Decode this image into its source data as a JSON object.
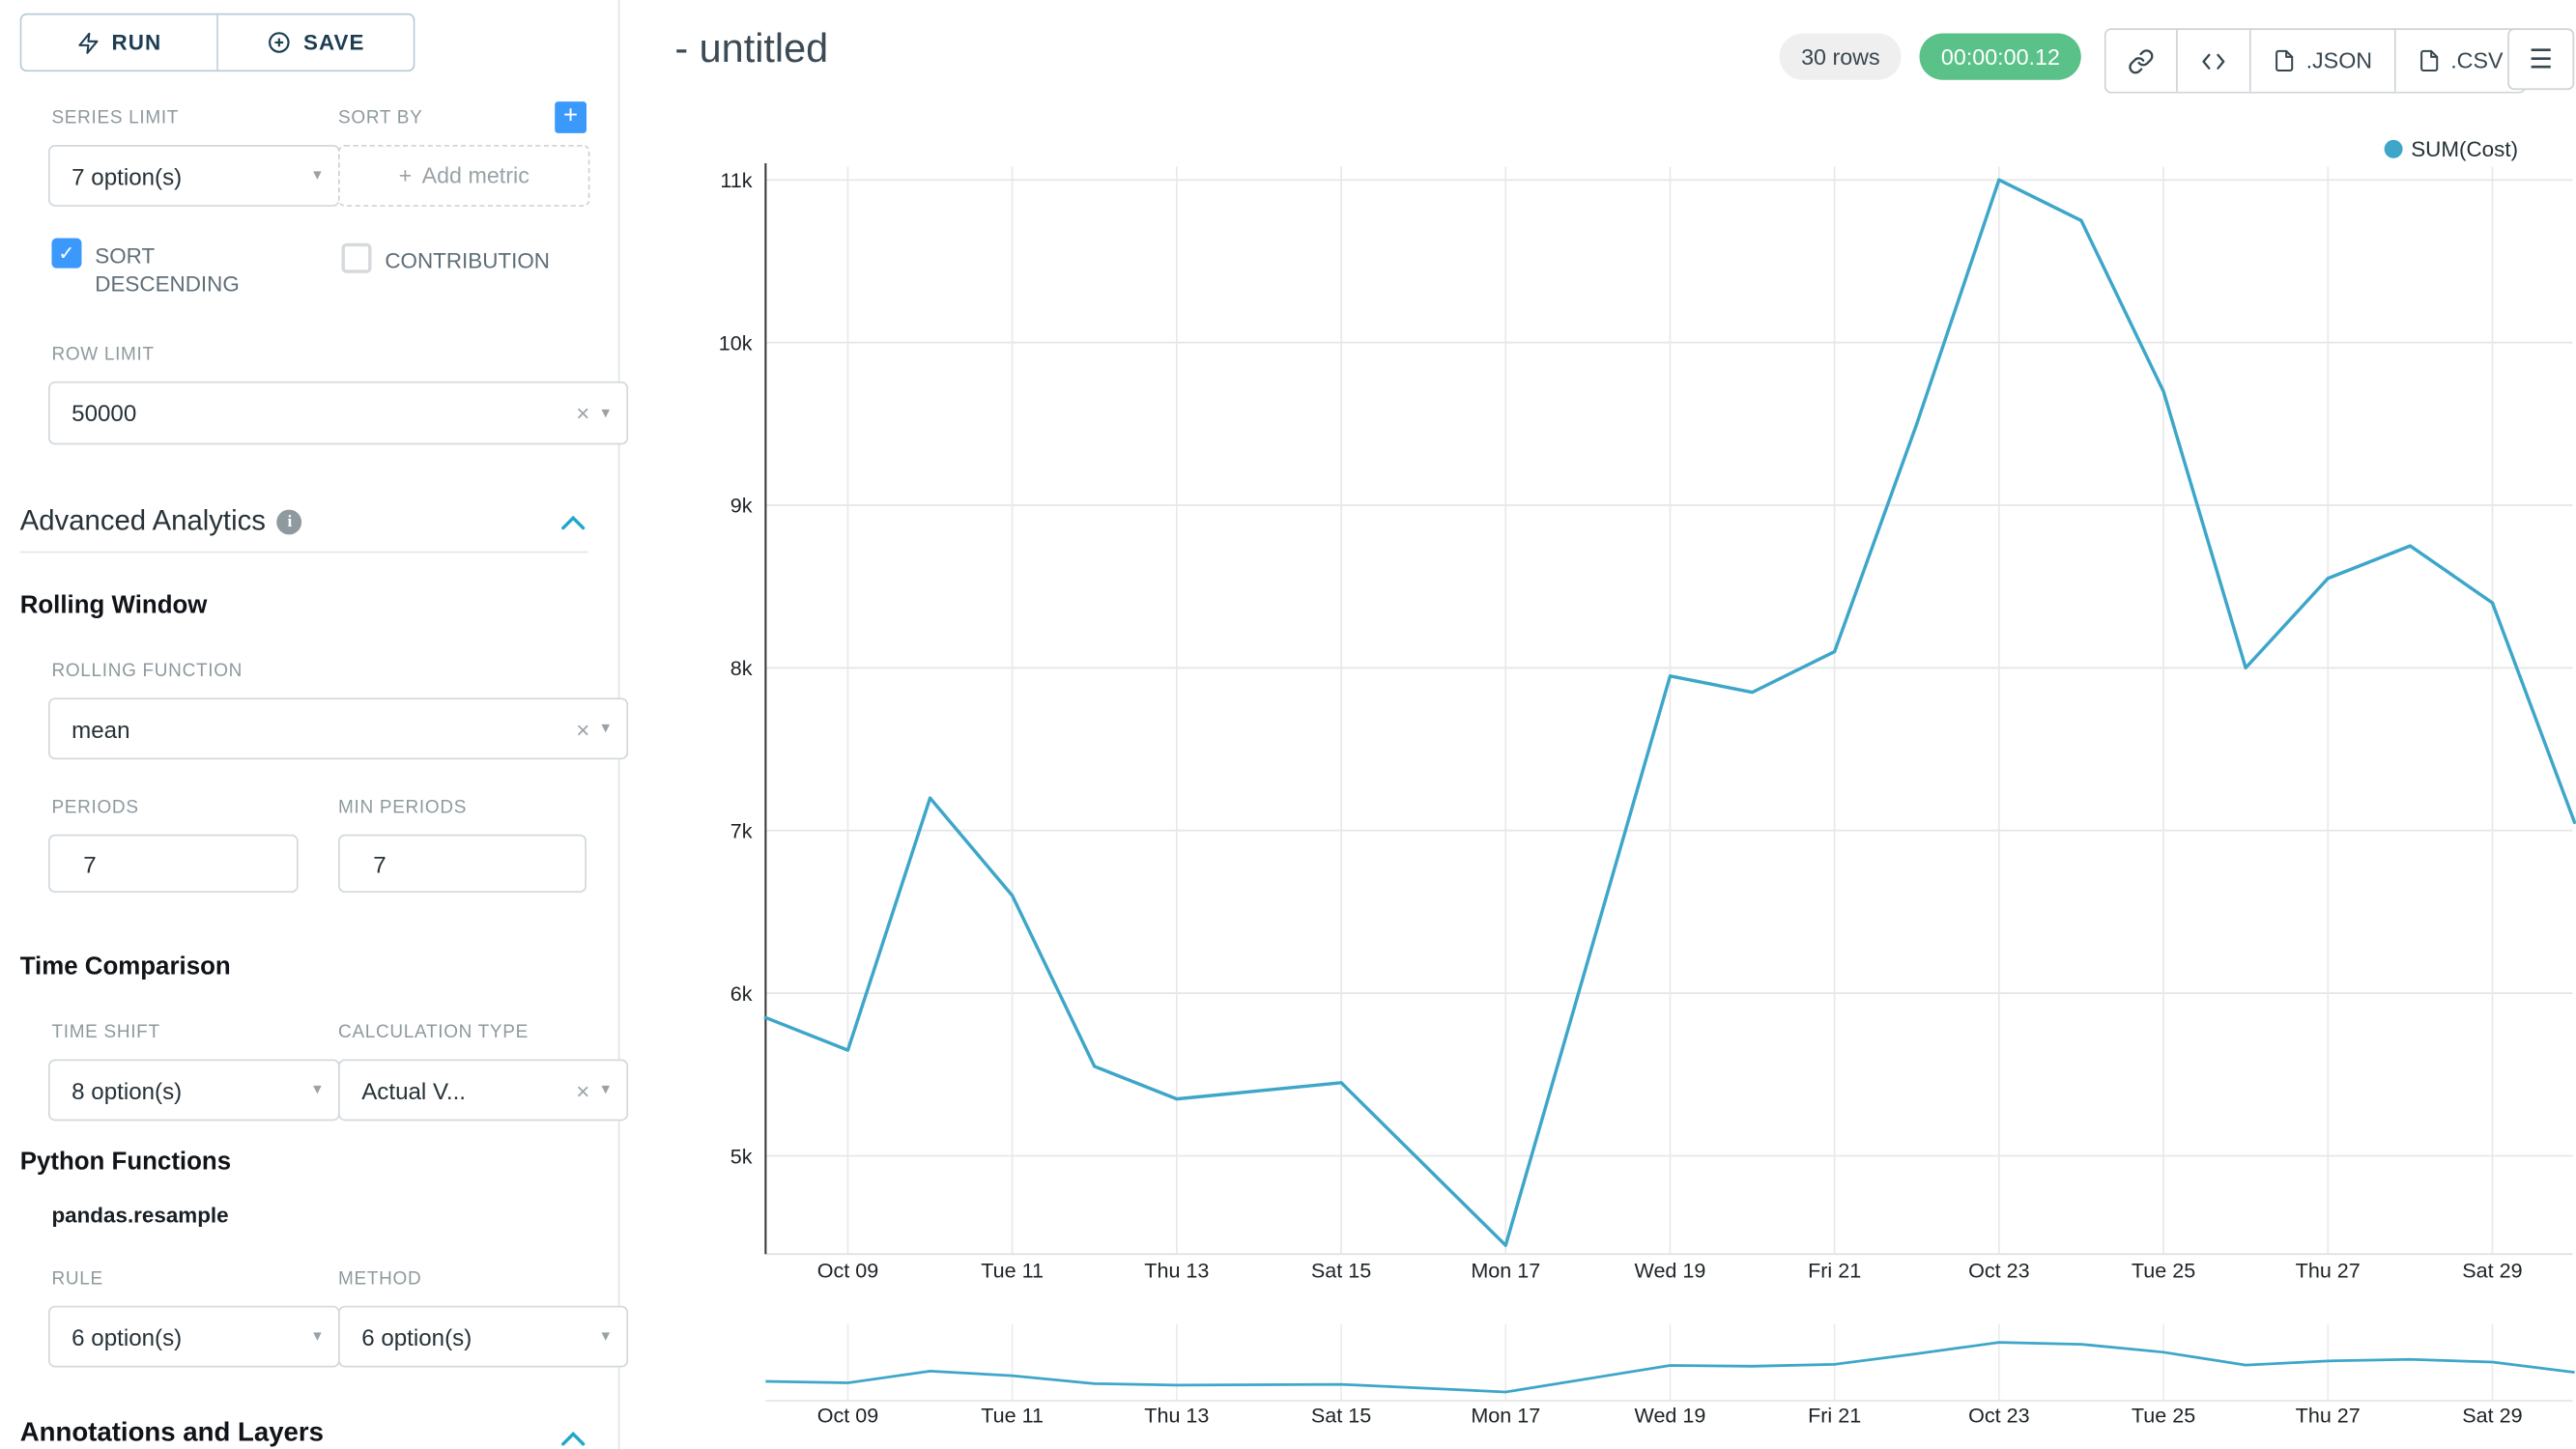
{
  "icons": {
    "caret": "▾",
    "clear": "×",
    "plus": "+",
    "menu": "☰",
    "check": "✓",
    "info": "i"
  },
  "sidebar": {
    "run_label": "RUN",
    "save_label": "SAVE",
    "series_limit": {
      "label": "SERIES LIMIT",
      "value": "7 option(s)"
    },
    "sort_by": {
      "label": "SORT BY",
      "placeholder": "Add metric"
    },
    "sort_descending": {
      "label": "SORT DESCENDING",
      "checked": true
    },
    "contribution": {
      "label": "CONTRIBUTION",
      "checked": false
    },
    "row_limit": {
      "label": "ROW LIMIT",
      "value": "50000"
    },
    "advanced_analytics": {
      "title": "Advanced Analytics"
    },
    "rolling_window": {
      "title": "Rolling Window",
      "rolling_function": {
        "label": "ROLLING FUNCTION",
        "value": "mean"
      },
      "periods": {
        "label": "PERIODS",
        "value": "7"
      },
      "min_periods": {
        "label": "MIN PERIODS",
        "value": "7"
      }
    },
    "time_comparison": {
      "title": "Time Comparison",
      "time_shift": {
        "label": "TIME SHIFT",
        "value": "8 option(s)"
      },
      "calculation_type": {
        "label": "CALCULATION TYPE",
        "value": "Actual V..."
      }
    },
    "python_functions": {
      "title": "Python Functions",
      "subtitle": "pandas.resample",
      "rule": {
        "label": "RULE",
        "value": "6 option(s)"
      },
      "method": {
        "label": "METHOD",
        "value": "6 option(s)"
      }
    },
    "annotations": {
      "title": "Annotations and Layers"
    }
  },
  "header": {
    "title": "- untitled",
    "rows_badge": "30 rows",
    "timer_badge": "00:00:00.12",
    "json_label": ".JSON",
    "csv_label": ".CSV"
  },
  "chart_data": {
    "type": "line",
    "title": "",
    "legend_position": "top-right",
    "grid": true,
    "ylim": [
      4350,
      11050
    ],
    "series": [
      {
        "name": "SUM(Cost)",
        "color": "#3da6c9",
        "x": [
          "Oct 08",
          "Oct 09",
          "Oct 10",
          "Oct 11",
          "Oct 12",
          "Oct 13",
          "Oct 14",
          "Oct 15",
          "Oct 16",
          "Oct 17",
          "Oct 18",
          "Oct 19",
          "Oct 20",
          "Oct 21",
          "Oct 22",
          "Oct 23",
          "Oct 24",
          "Oct 25",
          "Oct 26",
          "Oct 27",
          "Oct 28",
          "Oct 29",
          "Oct 30"
        ],
        "values": [
          5850,
          5650,
          7200,
          6600,
          5550,
          5350,
          5400,
          5450,
          4950,
          4450,
          6200,
          7950,
          7850,
          8100,
          9500,
          11000,
          10750,
          9700,
          8000,
          8550,
          8750,
          8400,
          7050
        ]
      }
    ],
    "x_ticks": [
      {
        "label": "Oct 09",
        "index": 1
      },
      {
        "label": "Tue 11",
        "index": 3
      },
      {
        "label": "Thu 13",
        "index": 5
      },
      {
        "label": "Sat 15",
        "index": 7
      },
      {
        "label": "Mon 17",
        "index": 9
      },
      {
        "label": "Wed 19",
        "index": 11
      },
      {
        "label": "Fri 21",
        "index": 13
      },
      {
        "label": "Oct 23",
        "index": 15
      },
      {
        "label": "Tue 25",
        "index": 17
      },
      {
        "label": "Thu 27",
        "index": 19
      },
      {
        "label": "Sat 29",
        "index": 21
      }
    ],
    "y_ticks": [
      {
        "label": "11k",
        "value": 11000
      },
      {
        "label": "10k",
        "value": 10000
      },
      {
        "label": "9k",
        "value": 9000
      },
      {
        "label": "8k",
        "value": 8000
      },
      {
        "label": "7k",
        "value": 7000
      },
      {
        "label": "6k",
        "value": 6000
      },
      {
        "label": "5k",
        "value": 5000
      }
    ]
  }
}
